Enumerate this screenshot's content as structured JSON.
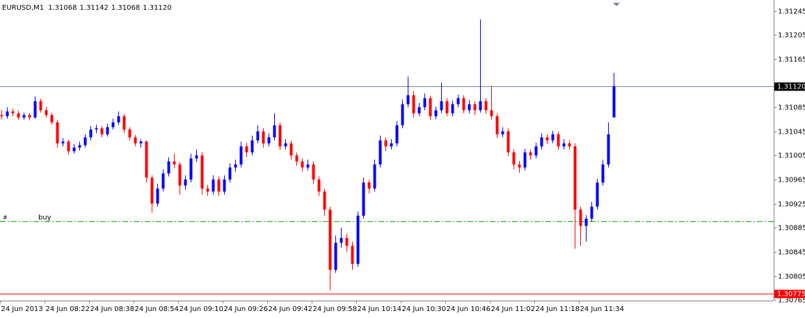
{
  "chart_data": {
    "type": "candlestick",
    "symbol": "EURUSD,M1",
    "last_price": {
      "value": 1.3112,
      "label": "1.31120"
    },
    "up_color": "#0000ff",
    "down_color": "#ff0000",
    "ylim": [
      1.30764,
      1.31263
    ],
    "yticks": [
      1.31245,
      1.31205,
      1.31165,
      1.31085,
      1.31045,
      1.31005,
      1.30965,
      1.30925,
      1.30885,
      1.30845,
      1.30805,
      1.30765
    ],
    "levels": [
      {
        "label": "buy",
        "marker": "#",
        "value": 1.30896,
        "color": "#00b000"
      },
      {
        "value": 1.30775,
        "color": "#ff0000"
      }
    ],
    "categories": [
      "24 Jun 2013",
      null,
      null,
      null,
      null,
      null,
      null,
      null,
      "24 Jun 08:22",
      null,
      null,
      null,
      null,
      null,
      null,
      null,
      "24 Jun 08:38",
      null,
      null,
      null,
      null,
      null,
      null,
      null,
      "24 Jun 08:54",
      null,
      null,
      null,
      null,
      null,
      null,
      null,
      "24 Jun 09:10",
      null,
      null,
      null,
      null,
      null,
      null,
      null,
      "24 Jun 09:26",
      null,
      null,
      null,
      null,
      null,
      null,
      null,
      "24 Jun 09:42",
      null,
      null,
      null,
      null,
      null,
      null,
      null,
      "24 Jun 09:58",
      null,
      null,
      null,
      null,
      null,
      null,
      null,
      "24 Jun 10:14",
      null,
      null,
      null,
      null,
      null,
      null,
      null,
      "24 Jun 10:30",
      null,
      null,
      null,
      null,
      null,
      null,
      null,
      "24 Jun 10:46",
      null,
      null,
      null,
      null,
      null,
      null,
      null,
      "24 Jun 11:02",
      null,
      null,
      null,
      null,
      null,
      null,
      null,
      "24 Jun 11:18",
      null,
      null,
      null,
      null,
      null,
      null,
      null,
      "24 Jun 11:34",
      null,
      null,
      null,
      null,
      null,
      null
    ],
    "ohlc": [
      [
        1.31072,
        1.3108,
        1.31065,
        1.3107
      ],
      [
        1.3107,
        1.31085,
        1.31066,
        1.31078
      ],
      [
        1.31078,
        1.31083,
        1.3107,
        1.31075
      ],
      [
        1.31075,
        1.31079,
        1.31064,
        1.31068
      ],
      [
        1.31068,
        1.31076,
        1.31064,
        1.31072
      ],
      [
        1.31072,
        1.31075,
        1.31063,
        1.31068
      ],
      [
        1.31068,
        1.31103,
        1.31066,
        1.31095
      ],
      [
        1.31095,
        1.31099,
        1.31076,
        1.3108
      ],
      [
        1.3108,
        1.31086,
        1.31068,
        1.31072
      ],
      [
        1.31072,
        1.31076,
        1.31056,
        1.3106
      ],
      [
        1.3106,
        1.31064,
        1.31018,
        1.31025
      ],
      [
        1.31025,
        1.31034,
        1.3102,
        1.31028
      ],
      [
        1.31028,
        1.31031,
        1.31006,
        1.31012
      ],
      [
        1.31012,
        1.31024,
        1.31008,
        1.31018
      ],
      [
        1.31018,
        1.31028,
        1.31013,
        1.31022
      ],
      [
        1.31022,
        1.3104,
        1.31018,
        1.31035
      ],
      [
        1.31035,
        1.31054,
        1.3103,
        1.31048
      ],
      [
        1.31048,
        1.31056,
        1.31042,
        1.3105
      ],
      [
        1.3105,
        1.31054,
        1.31035,
        1.3104
      ],
      [
        1.3104,
        1.31058,
        1.31036,
        1.31052
      ],
      [
        1.31052,
        1.31066,
        1.31048,
        1.3106
      ],
      [
        1.3106,
        1.31078,
        1.31056,
        1.3107
      ],
      [
        1.3107,
        1.31074,
        1.31042,
        1.31048
      ],
      [
        1.31048,
        1.31052,
        1.3103,
        1.31035
      ],
      [
        1.31035,
        1.31039,
        1.3102,
        1.31025
      ],
      [
        1.31025,
        1.31032,
        1.31018,
        1.31028
      ],
      [
        1.31028,
        1.3103,
        1.3096,
        1.30968
      ],
      [
        1.30968,
        1.30972,
        1.3091,
        1.30925
      ],
      [
        1.30925,
        1.30958,
        1.3092,
        1.3095
      ],
      [
        1.3095,
        1.30982,
        1.30945,
        1.30975
      ],
      [
        1.30975,
        1.31002,
        1.3097,
        1.30995
      ],
      [
        1.30995,
        1.31008,
        1.30984,
        1.3099
      ],
      [
        1.3099,
        1.30994,
        1.3094,
        1.30955
      ],
      [
        1.30955,
        1.30972,
        1.30948,
        1.30965
      ],
      [
        1.30965,
        1.31008,
        1.3096,
        1.31
      ],
      [
        1.31,
        1.31015,
        1.30994,
        1.31005
      ],
      [
        1.31005,
        1.3101,
        1.3094,
        1.3095
      ],
      [
        1.3095,
        1.30956,
        1.30938,
        1.30945
      ],
      [
        1.30945,
        1.30972,
        1.3094,
        1.30965
      ],
      [
        1.30965,
        1.3097,
        1.30938,
        1.30945
      ],
      [
        1.30945,
        1.30972,
        1.3094,
        1.30965
      ],
      [
        1.30965,
        1.30992,
        1.3096,
        1.30985
      ],
      [
        1.30985,
        1.30998,
        1.30978,
        1.3099
      ],
      [
        1.3099,
        1.31028,
        1.30985,
        1.3102
      ],
      [
        1.3102,
        1.31026,
        1.31002,
        1.3101
      ],
      [
        1.3101,
        1.31038,
        1.31005,
        1.3103
      ],
      [
        1.3103,
        1.31055,
        1.31025,
        1.31045
      ],
      [
        1.31045,
        1.3105,
        1.31018,
        1.31025
      ],
      [
        1.31025,
        1.31042,
        1.3102,
        1.31035
      ],
      [
        1.31035,
        1.31075,
        1.3103,
        1.31055
      ],
      [
        1.31055,
        1.3106,
        1.31014,
        1.3102
      ],
      [
        1.3102,
        1.31032,
        1.31015,
        1.31025
      ],
      [
        1.31025,
        1.3103,
        1.30998,
        1.31005
      ],
      [
        1.31005,
        1.3101,
        1.30988,
        1.30995
      ],
      [
        1.30995,
        1.31,
        1.30978,
        1.30985
      ],
      [
        1.30985,
        1.30998,
        1.3098,
        1.3099
      ],
      [
        1.3099,
        1.30995,
        1.30958,
        1.30965
      ],
      [
        1.30965,
        1.3097,
        1.30938,
        1.30945
      ],
      [
        1.30945,
        1.3095,
        1.30905,
        1.30915
      ],
      [
        1.30915,
        1.3092,
        1.30781,
        1.30815
      ],
      [
        1.30815,
        1.30872,
        1.3081,
        1.3086
      ],
      [
        1.3086,
        1.30885,
        1.30852,
        1.30868
      ],
      [
        1.30868,
        1.30875,
        1.30845,
        1.30855
      ],
      [
        1.30855,
        1.30862,
        1.30815,
        1.30825
      ],
      [
        1.30825,
        1.30912,
        1.3082,
        1.30905
      ],
      [
        1.30905,
        1.30968,
        1.309,
        1.3096
      ],
      [
        1.3096,
        1.30965,
        1.30942,
        1.3095
      ],
      [
        1.3095,
        1.30998,
        1.30945,
        1.3099
      ],
      [
        1.3099,
        1.31038,
        1.30985,
        1.3103
      ],
      [
        1.3103,
        1.31035,
        1.31012,
        1.3102
      ],
      [
        1.3102,
        1.31032,
        1.31015,
        1.31025
      ],
      [
        1.31025,
        1.31062,
        1.3102,
        1.31055
      ],
      [
        1.31055,
        1.31098,
        1.3105,
        1.3109
      ],
      [
        1.3109,
        1.31136,
        1.31085,
        1.31105
      ],
      [
        1.31105,
        1.31112,
        1.31068,
        1.31075
      ],
      [
        1.31075,
        1.31092,
        1.3107,
        1.31085
      ],
      [
        1.31085,
        1.31108,
        1.3108,
        1.311
      ],
      [
        1.311,
        1.31104,
        1.31064,
        1.3107
      ],
      [
        1.3107,
        1.31086,
        1.31065,
        1.3108
      ],
      [
        1.3108,
        1.31126,
        1.31075,
        1.31095
      ],
      [
        1.31095,
        1.311,
        1.3107,
        1.31075
      ],
      [
        1.31075,
        1.31096,
        1.3107,
        1.3109
      ],
      [
        1.3109,
        1.31106,
        1.31085,
        1.311
      ],
      [
        1.311,
        1.31105,
        1.31075,
        1.3108
      ],
      [
        1.3108,
        1.31097,
        1.31075,
        1.3109
      ],
      [
        1.3109,
        1.31095,
        1.31072,
        1.3108
      ],
      [
        1.3108,
        1.31231,
        1.31076,
        1.31095
      ],
      [
        1.31095,
        1.311,
        1.31074,
        1.3108
      ],
      [
        1.3108,
        1.3112,
        1.31064,
        1.3107
      ],
      [
        1.3107,
        1.31075,
        1.31034,
        1.3104
      ],
      [
        1.3104,
        1.31052,
        1.31035,
        1.31045
      ],
      [
        1.31045,
        1.3105,
        1.31004,
        1.3101
      ],
      [
        1.3101,
        1.31015,
        1.30982,
        1.3099
      ],
      [
        1.3099,
        1.30996,
        1.30976,
        1.30985
      ],
      [
        1.30985,
        1.31016,
        1.3098,
        1.3101
      ],
      [
        1.3101,
        1.31015,
        1.30998,
        1.31005
      ],
      [
        1.31005,
        1.31026,
        1.31,
        1.3102
      ],
      [
        1.3102,
        1.31042,
        1.31015,
        1.31035
      ],
      [
        1.31035,
        1.3104,
        1.31024,
        1.3103
      ],
      [
        1.3103,
        1.31046,
        1.31025,
        1.3104
      ],
      [
        1.3104,
        1.31045,
        1.31014,
        1.3102
      ],
      [
        1.3102,
        1.31032,
        1.31015,
        1.31025
      ],
      [
        1.31025,
        1.3103,
        1.31014,
        1.3102
      ],
      [
        1.3102,
        1.31025,
        1.3085,
        1.30915
      ],
      [
        1.30915,
        1.3092,
        1.30855,
        1.30888
      ],
      [
        1.30888,
        1.30906,
        1.30862,
        1.309
      ],
      [
        1.309,
        1.30928,
        1.30895,
        1.3092
      ],
      [
        1.3092,
        1.30966,
        1.30915,
        1.3096
      ],
      [
        1.3096,
        1.30998,
        1.30955,
        1.3099
      ],
      [
        1.3099,
        1.3106,
        1.30985,
        1.3104
      ],
      [
        1.31068,
        1.31142,
        1.31068,
        1.3112
      ]
    ]
  }
}
